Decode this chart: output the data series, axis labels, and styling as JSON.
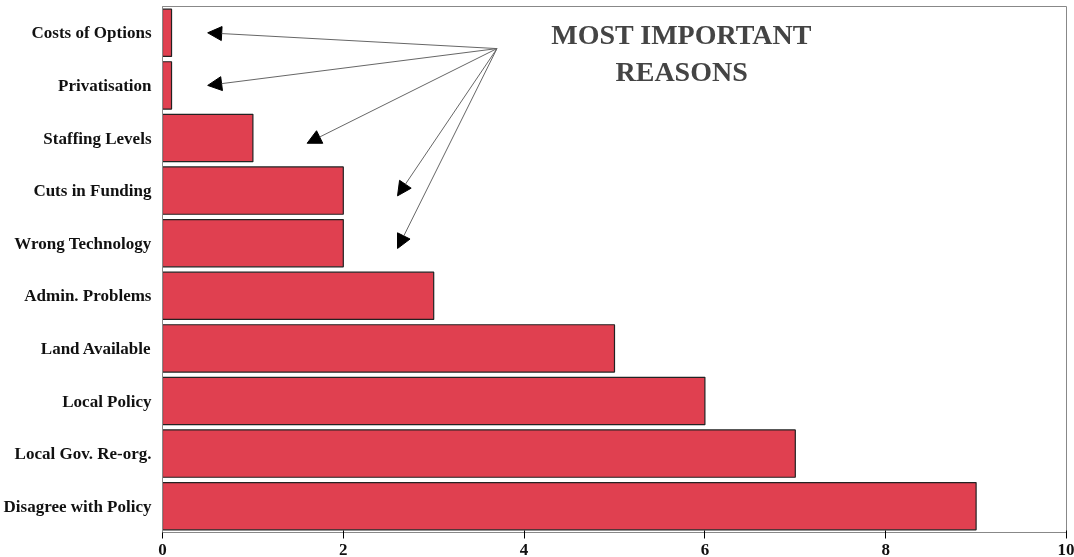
{
  "chart_data": {
    "type": "bar",
    "orientation": "horizontal",
    "categories": [
      "Costs of Options",
      "Privatisation",
      "Staffing Levels",
      "Cuts in Funding",
      "Wrong Technology",
      "Admin. Problems",
      "Land Available",
      "Local Policy",
      "Local Gov. Re-org.",
      "Disagree with Policy"
    ],
    "values": [
      0.1,
      0.1,
      1,
      2,
      2,
      3,
      5,
      6,
      7,
      9
    ],
    "color": "#e04050",
    "xlim": [
      0,
      10
    ],
    "xticks": [
      0,
      2,
      4,
      6,
      8,
      10
    ],
    "grid": false,
    "annotations": [
      "MOST IMPORTANT\nREASONS"
    ]
  }
}
